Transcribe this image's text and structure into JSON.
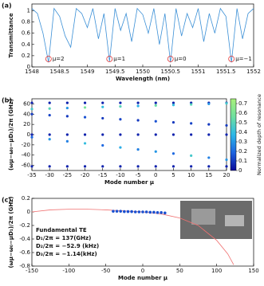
{
  "chart_data": [
    {
      "type": "line",
      "panel_label": "(a)",
      "x_label": "Wavelength (nm)",
      "y_label": "Transmittance",
      "xlim": [
        1548,
        1552
      ],
      "xticks": [
        1548,
        1548.5,
        1549,
        1549.5,
        1550,
        1550.5,
        1551,
        1551.5,
        1552
      ],
      "ylim": [
        0,
        1.12
      ],
      "yticks": [
        0,
        0.2,
        0.4,
        0.6,
        0.8,
        1
      ],
      "series": [
        {
          "color": "#3a8fd6",
          "x": [
            1548.0,
            1548.1,
            1548.2,
            1548.3,
            1548.4,
            1548.5,
            1548.6,
            1548.7,
            1548.8,
            1548.9,
            1549.0,
            1549.1,
            1549.2,
            1549.3,
            1549.4,
            1549.5,
            1549.6,
            1549.7,
            1549.8,
            1549.9,
            1550.0,
            1550.1,
            1550.2,
            1550.3,
            1550.4,
            1550.5,
            1550.6,
            1550.7,
            1550.8,
            1550.9,
            1551.0,
            1551.1,
            1551.2,
            1551.3,
            1551.4,
            1551.5,
            1551.6,
            1551.7,
            1551.8,
            1551.9,
            1552.0
          ],
          "values": [
            1.04,
            0.95,
            0.6,
            0.08,
            1.04,
            0.9,
            0.55,
            0.35,
            1.04,
            0.95,
            0.7,
            1.04,
            0.5,
            0.95,
            0.1,
            1.04,
            0.65,
            0.95,
            0.45,
            1.04,
            0.93,
            0.6,
            1.04,
            0.4,
            0.95,
            0.08,
            1.04,
            0.55,
            0.95,
            0.7,
            1.04,
            0.45,
            0.95,
            0.6,
            1.04,
            0.9,
            0.08,
            1.04,
            0.5,
            0.95,
            1.04
          ]
        }
      ],
      "annotations": [
        {
          "label": "μ=2",
          "x": 1548.3
        },
        {
          "label": "μ=1",
          "x": 1549.4
        },
        {
          "label": "μ=0",
          "x": 1550.5
        },
        {
          "label": "μ=−1",
          "x": 1551.6
        }
      ]
    },
    {
      "type": "scatter",
      "panel_label": "(b)",
      "x_label": "Mode number μ",
      "y_label": "(ωμ−ω₀−μD₁)/2π (GHz)",
      "xlim": [
        -35,
        20
      ],
      "xticks": [
        -35,
        -30,
        -25,
        -20,
        -15,
        -10,
        -5,
        0,
        5,
        10,
        15,
        20
      ],
      "ylim": [
        -70,
        70
      ],
      "yticks": [
        -60,
        -40,
        -20,
        0,
        20,
        40,
        60
      ],
      "colorbar_label": "Normalized depth of resonance",
      "clim": [
        0,
        0.75
      ],
      "colorbar_ticks": [
        0,
        0.1,
        0.2,
        0.3,
        0.4,
        0.5,
        0.6,
        0.7
      ],
      "colormap": [
        "#0a0a9a",
        "#1e64e0",
        "#2cb8e8",
        "#6ee0a0",
        "#a8f07a"
      ],
      "series": [
        {
          "x": [
            -35,
            -30,
            -25,
            -20,
            -15,
            -10,
            -5,
            0,
            5,
            10,
            15,
            20,
            -35,
            -30,
            -25,
            -20,
            -15,
            -10,
            -5,
            0,
            5,
            10,
            15,
            20,
            -35,
            -30,
            -25,
            -20,
            -15,
            -10,
            -5,
            0,
            5,
            10,
            15,
            20,
            -35,
            -30,
            -25,
            -20,
            -15,
            -10,
            -5,
            0,
            5,
            10,
            15,
            20,
            -35,
            -30,
            -25,
            -20,
            -15,
            -10,
            -5,
            0,
            5,
            10,
            15,
            20,
            -35,
            -30,
            -25,
            -20,
            -15,
            -10,
            -5,
            0,
            5,
            10,
            15,
            20
          ],
          "values": [
            62,
            62,
            62,
            62,
            62,
            62,
            62,
            62,
            62,
            62,
            62,
            62,
            50,
            51,
            52,
            53,
            54,
            55,
            56,
            57,
            58,
            59,
            60,
            61,
            40,
            38,
            36,
            34,
            32,
            30,
            28,
            26,
            24,
            22,
            20,
            18,
            0,
            0,
            0,
            0,
            0,
            0,
            0,
            0,
            0,
            0,
            0,
            0,
            -5,
            -9,
            -13,
            -17,
            -21,
            -25,
            -29,
            -33,
            -37,
            -41,
            -45,
            -49,
            -62,
            -62,
            -62,
            -62,
            -62,
            -62,
            -62,
            -62,
            -62,
            -62,
            -62,
            -62
          ],
          "depth": [
            0.05,
            0.05,
            0.05,
            0.05,
            0.05,
            0.05,
            0.05,
            0.05,
            0.05,
            0.05,
            0.05,
            0.05,
            0.45,
            0.5,
            0.3,
            0.6,
            0.4,
            0.5,
            0.35,
            0.55,
            0.4,
            0.5,
            0.3,
            0.45,
            0.1,
            0.12,
            0.1,
            0.15,
            0.1,
            0.12,
            0.1,
            0.15,
            0.1,
            0.12,
            0.1,
            0.1,
            0.05,
            0.05,
            0.05,
            0.05,
            0.05,
            0.05,
            0.05,
            0.05,
            0.05,
            0.05,
            0.05,
            0.05,
            0.2,
            0.3,
            0.25,
            0.4,
            0.2,
            0.35,
            0.25,
            0.3,
            0.2,
            0.45,
            0.25,
            0.3,
            0.05,
            0.05,
            0.05,
            0.05,
            0.05,
            0.05,
            0.05,
            0.05,
            0.05,
            0.05,
            0.05,
            0.05
          ]
        }
      ]
    },
    {
      "type": "line",
      "panel_label": "(c)",
      "x_label": "Mode number μ",
      "y_label": "(ωμ−ω₀−μD₁)/2π (GHz)",
      "xlim": [
        -150,
        150
      ],
      "xticks": [
        -150,
        -100,
        -50,
        0,
        50,
        100,
        150
      ],
      "ylim": [
        -0.8,
        0.2
      ],
      "yticks": [
        -0.8,
        -0.6,
        -0.4,
        -0.2,
        0,
        0.2
      ],
      "notes": [
        "Fundamental TE",
        "D₁/2π = 137(GHz)",
        "D₂/2π = −52.9 (kHz)",
        "D₃/2π = −1.14(kHz)"
      ],
      "series": [
        {
          "color": "#f07070",
          "x": [
            -150,
            -125,
            -100,
            -75,
            -50,
            -25,
            0,
            25,
            50,
            75,
            100,
            115,
            123
          ],
          "values": [
            0,
            0.03,
            0.04,
            0.04,
            0.03,
            0.015,
            0,
            -0.03,
            -0.09,
            -0.2,
            -0.42,
            -0.62,
            -0.78
          ]
        },
        {
          "color": "#1a50d0",
          "mode": "markers",
          "x": [
            -40,
            -35,
            -30,
            -25,
            -20,
            -15,
            -10,
            -5,
            0,
            5,
            10,
            15,
            20,
            25,
            30
          ],
          "values": [
            0.01,
            0.01,
            0.01,
            0.005,
            0.005,
            0.005,
            0,
            0,
            0,
            0,
            -0.005,
            -0.005,
            -0.01,
            -0.01,
            -0.015
          ]
        }
      ]
    }
  ]
}
